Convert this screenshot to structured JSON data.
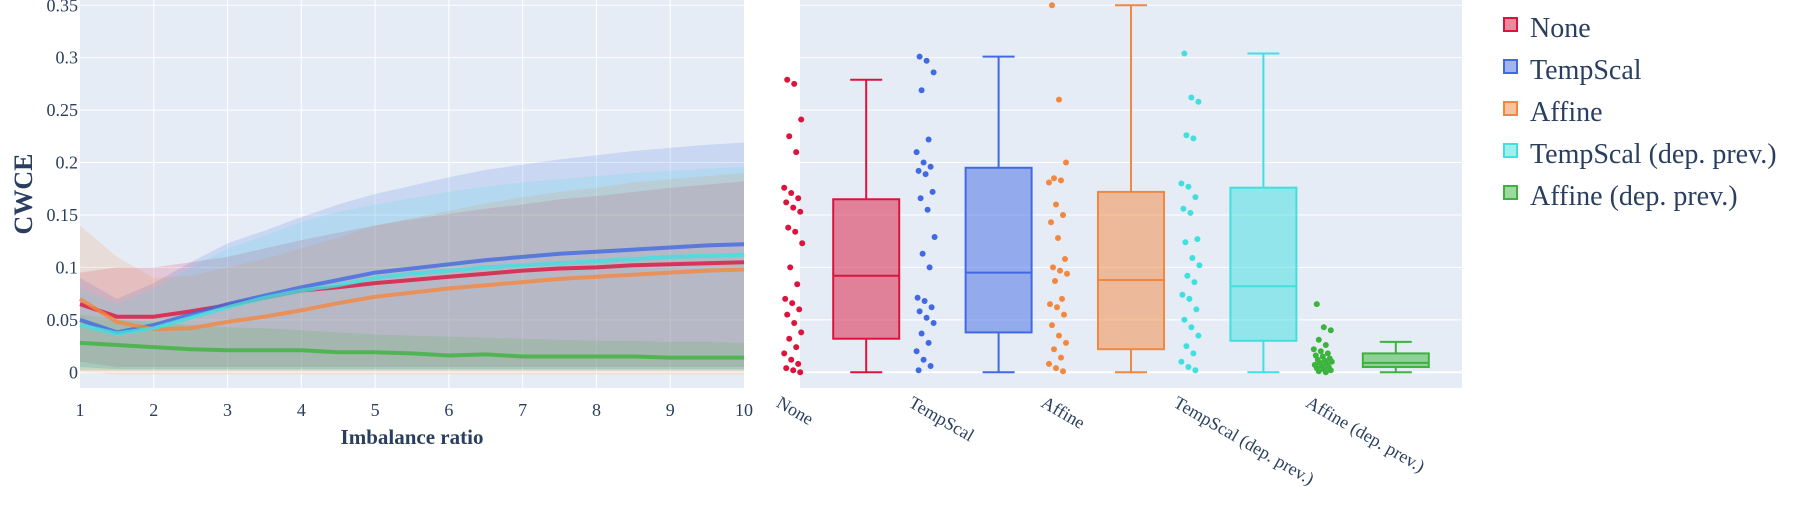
{
  "chart_data": [
    {
      "type": "line",
      "ylabel": "CWCE",
      "xlabel": "Imbalance ratio",
      "xlim": [
        1,
        10
      ],
      "ylim": [
        -0.015,
        0.355
      ],
      "x_ticks": [
        "1",
        "2",
        "3",
        "4",
        "5",
        "6",
        "7",
        "8",
        "9",
        "10"
      ],
      "y_ticks": [
        "0",
        "0.05",
        "0.1",
        "0.15",
        "0.2",
        "0.25",
        "0.3",
        "0.35"
      ],
      "grid": true,
      "series": [
        {
          "name": "None",
          "color": "#dc143c",
          "x": [
            1,
            1.5,
            2,
            2.5,
            3,
            3.5,
            4,
            4.5,
            5,
            5.5,
            6,
            6.5,
            7,
            7.5,
            8,
            8.5,
            9,
            9.5,
            10
          ],
          "y": [
            0.065,
            0.053,
            0.053,
            0.058,
            0.064,
            0.071,
            0.078,
            0.081,
            0.085,
            0.088,
            0.091,
            0.094,
            0.097,
            0.099,
            0.1,
            0.102,
            0.103,
            0.104,
            0.105
          ],
          "lower": [
            0.01,
            0.005,
            0.005,
            0.005,
            0.005,
            0.005,
            0.005,
            0.005,
            0.005,
            0.005,
            0.005,
            0.005,
            0.005,
            0.005,
            0.005,
            0.005,
            0.005,
            0.005,
            0.005
          ],
          "upper": [
            0.095,
            0.1,
            0.1,
            0.105,
            0.11,
            0.118,
            0.126,
            0.133,
            0.14,
            0.146,
            0.151,
            0.156,
            0.16,
            0.165,
            0.168,
            0.172,
            0.176,
            0.179,
            0.182
          ]
        },
        {
          "name": "TempScal",
          "color": "#4169e1",
          "x": [
            1,
            1.5,
            2,
            2.5,
            3,
            3.5,
            4,
            4.5,
            5,
            5.5,
            6,
            6.5,
            7,
            7.5,
            8,
            8.5,
            9,
            9.5,
            10
          ],
          "y": [
            0.05,
            0.038,
            0.045,
            0.055,
            0.065,
            0.073,
            0.081,
            0.088,
            0.095,
            0.099,
            0.103,
            0.107,
            0.11,
            0.113,
            0.115,
            0.117,
            0.119,
            0.121,
            0.122
          ],
          "lower": [
            0.005,
            0.003,
            0.003,
            0.003,
            0.003,
            0.003,
            0.003,
            0.003,
            0.003,
            0.003,
            0.003,
            0.003,
            0.003,
            0.003,
            0.003,
            0.003,
            0.003,
            0.003,
            0.003
          ],
          "upper": [
            0.09,
            0.07,
            0.085,
            0.105,
            0.123,
            0.135,
            0.148,
            0.16,
            0.17,
            0.178,
            0.186,
            0.193,
            0.198,
            0.203,
            0.207,
            0.211,
            0.214,
            0.217,
            0.219
          ]
        },
        {
          "name": "Affine",
          "color": "#f4873e",
          "x": [
            1,
            1.5,
            2,
            2.5,
            3,
            3.5,
            4,
            4.5,
            5,
            5.5,
            6,
            6.5,
            7,
            7.5,
            8,
            8.5,
            9,
            9.5,
            10
          ],
          "y": [
            0.07,
            0.048,
            0.041,
            0.042,
            0.048,
            0.053,
            0.059,
            0.066,
            0.072,
            0.076,
            0.08,
            0.083,
            0.086,
            0.089,
            0.091,
            0.093,
            0.095,
            0.097,
            0.098
          ],
          "lower": [
            0.0,
            -0.002,
            -0.002,
            -0.002,
            -0.002,
            -0.002,
            -0.002,
            -0.002,
            -0.002,
            -0.002,
            -0.002,
            -0.002,
            -0.002,
            -0.002,
            -0.002,
            -0.002,
            -0.002,
            -0.002,
            -0.002
          ],
          "upper": [
            0.14,
            0.11,
            0.09,
            0.092,
            0.1,
            0.108,
            0.118,
            0.128,
            0.14,
            0.147,
            0.154,
            0.161,
            0.167,
            0.172,
            0.176,
            0.181,
            0.184,
            0.187,
            0.19
          ]
        },
        {
          "name": "TempScal (dep. prev.)",
          "color": "#40e0e0",
          "x": [
            1,
            1.5,
            2,
            2.5,
            3,
            3.5,
            4,
            4.5,
            5,
            5.5,
            6,
            6.5,
            7,
            7.5,
            8,
            8.5,
            9,
            9.5,
            10
          ],
          "y": [
            0.045,
            0.037,
            0.042,
            0.052,
            0.062,
            0.071,
            0.078,
            0.083,
            0.09,
            0.094,
            0.097,
            0.1,
            0.102,
            0.104,
            0.106,
            0.108,
            0.11,
            0.111,
            0.112
          ],
          "lower": [
            0.005,
            0.003,
            0.003,
            0.003,
            0.003,
            0.003,
            0.003,
            0.003,
            0.003,
            0.003,
            0.003,
            0.003,
            0.003,
            0.003,
            0.003,
            0.003,
            0.003,
            0.003,
            0.003
          ],
          "upper": [
            0.08,
            0.065,
            0.08,
            0.1,
            0.118,
            0.13,
            0.143,
            0.153,
            0.16,
            0.166,
            0.172,
            0.177,
            0.181,
            0.184,
            0.187,
            0.19,
            0.192,
            0.194,
            0.196
          ]
        },
        {
          "name": "Affine (dep. prev.)",
          "color": "#3cb33c",
          "x": [
            1,
            1.5,
            2,
            2.5,
            3,
            3.5,
            4,
            4.5,
            5,
            5.5,
            6,
            6.5,
            7,
            7.5,
            8,
            8.5,
            9,
            9.5,
            10
          ],
          "y": [
            0.028,
            0.026,
            0.024,
            0.022,
            0.021,
            0.021,
            0.021,
            0.019,
            0.019,
            0.018,
            0.016,
            0.017,
            0.015,
            0.015,
            0.015,
            0.015,
            0.014,
            0.014,
            0.014
          ],
          "lower": [
            0.002,
            0.002,
            0.002,
            0.002,
            0.002,
            0.002,
            0.002,
            0.002,
            0.002,
            0.002,
            0.002,
            0.002,
            0.002,
            0.002,
            0.002,
            0.002,
            0.002,
            0.002,
            0.002
          ],
          "upper": [
            0.055,
            0.05,
            0.048,
            0.045,
            0.043,
            0.042,
            0.04,
            0.038,
            0.036,
            0.035,
            0.034,
            0.033,
            0.032,
            0.031,
            0.03,
            0.03,
            0.029,
            0.029,
            0.028
          ]
        }
      ]
    },
    {
      "type": "box",
      "ylim": [
        -0.015,
        0.355
      ],
      "categories": [
        "None",
        "TempScal",
        "Affine",
        "TempScal (dep. prev.)",
        "Affine (dep. prev.)"
      ],
      "series": [
        {
          "name": "None",
          "color": "#dc143c",
          "min": 0.0,
          "q1": 0.032,
          "median": 0.092,
          "q3": 0.165,
          "max": 0.279,
          "points": [
            0.279,
            0.275,
            0.241,
            0.225,
            0.21,
            0.176,
            0.171,
            0.166,
            0.162,
            0.157,
            0.153,
            0.138,
            0.134,
            0.123,
            0.1,
            0.084,
            0.07,
            0.066,
            0.06,
            0.055,
            0.047,
            0.038,
            0.032,
            0.024,
            0.018,
            0.012,
            0.008,
            0.004,
            0.002,
            0.0
          ]
        },
        {
          "name": "TempScal",
          "color": "#4169e1",
          "min": 0.0,
          "q1": 0.038,
          "median": 0.095,
          "q3": 0.195,
          "max": 0.301,
          "points": [
            0.301,
            0.297,
            0.286,
            0.269,
            0.222,
            0.21,
            0.2,
            0.196,
            0.192,
            0.189,
            0.172,
            0.166,
            0.155,
            0.129,
            0.113,
            0.1,
            0.071,
            0.068,
            0.062,
            0.058,
            0.052,
            0.047,
            0.037,
            0.028,
            0.02,
            0.012,
            0.006,
            0.002
          ]
        },
        {
          "name": "Affine",
          "color": "#f4873e",
          "min": 0.0,
          "q1": 0.022,
          "median": 0.088,
          "q3": 0.172,
          "max": 0.35,
          "points": [
            0.35,
            0.26,
            0.2,
            0.185,
            0.183,
            0.181,
            0.16,
            0.15,
            0.143,
            0.128,
            0.108,
            0.1,
            0.097,
            0.094,
            0.087,
            0.07,
            0.065,
            0.062,
            0.055,
            0.045,
            0.035,
            0.028,
            0.022,
            0.014,
            0.008,
            0.004,
            0.001
          ]
        },
        {
          "name": "TempScal (dep. prev.)",
          "color": "#40e0e0",
          "min": 0.0,
          "q1": 0.03,
          "median": 0.082,
          "q3": 0.176,
          "max": 0.304,
          "points": [
            0.304,
            0.262,
            0.258,
            0.226,
            0.223,
            0.18,
            0.177,
            0.167,
            0.156,
            0.152,
            0.127,
            0.124,
            0.109,
            0.102,
            0.092,
            0.086,
            0.074,
            0.07,
            0.06,
            0.05,
            0.043,
            0.035,
            0.025,
            0.018,
            0.01,
            0.005,
            0.002
          ]
        },
        {
          "name": "Affine (dep. prev.)",
          "color": "#3cb33c",
          "min": 0.0,
          "q1": 0.005,
          "median": 0.009,
          "q3": 0.018,
          "max": 0.029,
          "points": [
            0.065,
            0.043,
            0.04,
            0.031,
            0.026,
            0.022,
            0.02,
            0.018,
            0.016,
            0.015,
            0.013,
            0.012,
            0.011,
            0.01,
            0.009,
            0.008,
            0.007,
            0.006,
            0.005,
            0.004,
            0.003,
            0.002,
            0.001,
            0.0
          ]
        }
      ]
    }
  ],
  "legend": {
    "position": "right",
    "items": [
      {
        "label": "None",
        "color": "#dc143c"
      },
      {
        "label": "TempScal",
        "color": "#4169e1"
      },
      {
        "label": "Affine",
        "color": "#f4873e"
      },
      {
        "label": "TempScal (dep. prev.)",
        "color": "#40e0e0"
      },
      {
        "label": "Affine (dep. prev.)",
        "color": "#3cb33c"
      }
    ]
  }
}
